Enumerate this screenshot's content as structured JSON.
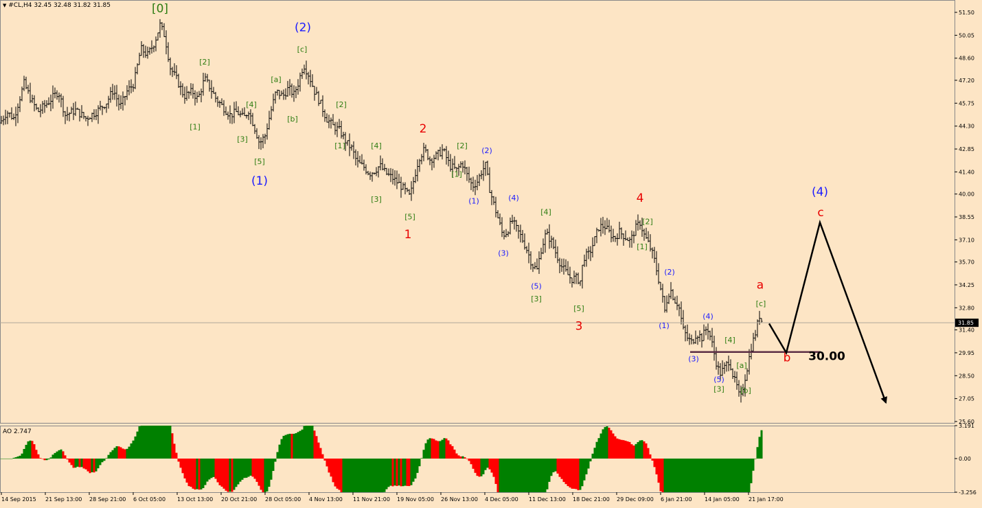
{
  "header": {
    "symbol": "#CL,H4",
    "ohlc": "32.45 32.48 31.82 31.85",
    "menu_icon": "triangle-down-icon"
  },
  "indicator": {
    "label": "AO 2.747",
    "ticks": [
      "3.191",
      "0.00",
      "-3.256"
    ]
  },
  "colors": {
    "background": "#fde5c5",
    "bars": "#000000",
    "wave_green": "#2e7d12",
    "wave_blue": "#1a1aff",
    "wave_red": "#e80000",
    "ao_up": "#008000",
    "ao_down": "#ff0000",
    "support_line": "#5b2d44",
    "current_price_bg": "#000000"
  },
  "chart_data": [
    {
      "type": "candlestick",
      "title": "#CL,H4",
      "price_axis_ticks": [
        "51.50",
        "50.05",
        "48.60",
        "47.20",
        "45.75",
        "44.30",
        "42.85",
        "41.40",
        "40.00",
        "38.55",
        "37.10",
        "35.70",
        "34.25",
        "32.80",
        "31.40",
        "29.95",
        "28.50",
        "27.05",
        "25.60"
      ],
      "ylim": [
        25.6,
        51.5
      ],
      "time_axis_labels": [
        "14 Sep 2015",
        "21 Sep 13:00",
        "28 Sep 21:00",
        "6 Oct 05:00",
        "13 Oct 13:00",
        "20 Oct 21:00",
        "28 Oct 05:00",
        "4 Nov 13:00",
        "11 Nov 21:00",
        "19 Nov 05:00",
        "26 Nov 13:00",
        "4 Dec 05:00",
        "11 Dec 13:00",
        "18 Dec 21:00",
        "29 Dec 09:00",
        "6 Jan 21:00",
        "14 Jan 05:00",
        "21 Jan 17:00"
      ],
      "current_price": "31.85",
      "path": [
        [
          0,
          44.5
        ],
        [
          10,
          45.2
        ],
        [
          20,
          44.8
        ],
        [
          35,
          47.0
        ],
        [
          45,
          46.0
        ],
        [
          55,
          45.2
        ],
        [
          70,
          45.8
        ],
        [
          85,
          46.5
        ],
        [
          95,
          45.0
        ],
        [
          110,
          45.3
        ],
        [
          125,
          44.8
        ],
        [
          140,
          45.2
        ],
        [
          155,
          45.8
        ],
        [
          165,
          46.6
        ],
        [
          175,
          45.5
        ],
        [
          185,
          46.5
        ],
        [
          195,
          47.0
        ],
        [
          205,
          49.2
        ],
        [
          215,
          48.8
        ],
        [
          225,
          49.6
        ],
        [
          233,
          50.7
        ],
        [
          240,
          50.0
        ],
        [
          248,
          48.0
        ],
        [
          258,
          47.2
        ],
        [
          268,
          46.2
        ],
        [
          280,
          46.5
        ],
        [
          288,
          46.0
        ],
        [
          298,
          47.3
        ],
        [
          305,
          46.8
        ],
        [
          315,
          46.0
        ],
        [
          325,
          45.5
        ],
        [
          335,
          45.0
        ],
        [
          345,
          45.2
        ],
        [
          355,
          44.8
        ],
        [
          362,
          45.3
        ],
        [
          370,
          44.3
        ],
        [
          378,
          43.2
        ],
        [
          386,
          43.7
        ],
        [
          393,
          45.0
        ],
        [
          402,
          46.5
        ],
        [
          412,
          46.2
        ],
        [
          420,
          46.7
        ],
        [
          428,
          46.3
        ],
        [
          434,
          47.0
        ],
        [
          442,
          48.2
        ],
        [
          450,
          47.5
        ],
        [
          458,
          46.5
        ],
        [
          466,
          45.8
        ],
        [
          475,
          44.8
        ],
        [
          485,
          44.3
        ],
        [
          495,
          44.0
        ],
        [
          505,
          43.2
        ],
        [
          512,
          42.9
        ],
        [
          520,
          42.0
        ],
        [
          530,
          41.7
        ],
        [
          538,
          41.3
        ],
        [
          546,
          41.5
        ],
        [
          553,
          41.8
        ],
        [
          562,
          41.3
        ],
        [
          572,
          41.0
        ],
        [
          582,
          40.6
        ],
        [
          590,
          40.2
        ],
        [
          597,
          39.8
        ],
        [
          603,
          41.0
        ],
        [
          610,
          42.3
        ],
        [
          618,
          42.8
        ],
        [
          626,
          42.2
        ],
        [
          635,
          42.4
        ],
        [
          645,
          42.8
        ],
        [
          655,
          41.8
        ],
        [
          665,
          41.5
        ],
        [
          673,
          42.0
        ],
        [
          680,
          41.2
        ],
        [
          688,
          40.5
        ],
        [
          695,
          40.8
        ],
        [
          702,
          41.5
        ],
        [
          707,
          41.8
        ],
        [
          712,
          40.5
        ],
        [
          718,
          39.5
        ],
        [
          725,
          38.5
        ],
        [
          732,
          37.4
        ],
        [
          738,
          37.6
        ],
        [
          746,
          38.3
        ],
        [
          752,
          37.8
        ],
        [
          760,
          37.2
        ],
        [
          768,
          36.4
        ],
        [
          775,
          35.5
        ],
        [
          782,
          35.2
        ],
        [
          788,
          36.5
        ],
        [
          795,
          37.5
        ],
        [
          802,
          37.1
        ],
        [
          810,
          36.2
        ],
        [
          818,
          35.4
        ],
        [
          825,
          35.0
        ],
        [
          832,
          34.6
        ],
        [
          838,
          34.7
        ],
        [
          845,
          34.5
        ],
        [
          850,
          36.0
        ],
        [
          858,
          36.2
        ],
        [
          865,
          37.0
        ],
        [
          872,
          37.9
        ],
        [
          880,
          38.0
        ],
        [
          888,
          37.5
        ],
        [
          895,
          37.2
        ],
        [
          902,
          37.6
        ],
        [
          910,
          37.3
        ],
        [
          918,
          37.0
        ],
        [
          925,
          37.8
        ],
        [
          932,
          38.2
        ],
        [
          938,
          37.4
        ],
        [
          945,
          36.8
        ],
        [
          952,
          36.0
        ],
        [
          958,
          34.8
        ],
        [
          964,
          33.6
        ],
        [
          968,
          32.6
        ],
        [
          972,
          33.5
        ],
        [
          976,
          34.0
        ],
        [
          982,
          33.3
        ],
        [
          988,
          33.0
        ],
        [
          995,
          31.4
        ],
        [
          1002,
          30.8
        ],
        [
          1008,
          30.6
        ],
        [
          1014,
          31.2
        ],
        [
          1022,
          30.9
        ],
        [
          1030,
          31.6
        ],
        [
          1036,
          30.7
        ],
        [
          1042,
          29.5
        ],
        [
          1048,
          28.6
        ],
        [
          1055,
          29.0
        ],
        [
          1062,
          29.5
        ],
        [
          1068,
          28.4
        ],
        [
          1073,
          27.8
        ],
        [
          1078,
          26.9
        ],
        [
          1083,
          28.0
        ],
        [
          1088,
          29.0
        ],
        [
          1094,
          30.3
        ],
        [
          1100,
          31.2
        ],
        [
          1106,
          32.3
        ],
        [
          1110,
          31.9
        ]
      ],
      "wave_labels": [
        {
          "text": "[0]",
          "color": "green",
          "x": 233,
          "y": 51.5,
          "size": "large"
        },
        {
          "text": "[2]",
          "color": "green",
          "x": 298,
          "y": 48.2
        },
        {
          "text": "[1]",
          "color": "green",
          "x": 284,
          "y": 44.1
        },
        {
          "text": "[3]",
          "color": "green",
          "x": 353,
          "y": 43.3
        },
        {
          "text": "[4]",
          "color": "green",
          "x": 366,
          "y": 45.5
        },
        {
          "text": "[5]",
          "color": "green",
          "x": 378,
          "y": 41.9
        },
        {
          "text": "(1)",
          "color": "blue",
          "x": 378,
          "y": 40.6,
          "size": "large"
        },
        {
          "text": "(2)",
          "color": "blue",
          "x": 441,
          "y": 50.3,
          "size": "large"
        },
        {
          "text": "[c]",
          "color": "green",
          "x": 440,
          "y": 49.0
        },
        {
          "text": "[a]",
          "color": "green",
          "x": 402,
          "y": 47.1
        },
        {
          "text": "[b]",
          "color": "green",
          "x": 426,
          "y": 44.6
        },
        {
          "text": "[2]",
          "color": "green",
          "x": 497,
          "y": 45.5
        },
        {
          "text": "[1]",
          "color": "green",
          "x": 495,
          "y": 42.9
        },
        {
          "text": "[4]",
          "color": "green",
          "x": 548,
          "y": 42.9
        },
        {
          "text": "[3]",
          "color": "green",
          "x": 548,
          "y": 39.5
        },
        {
          "text": "2",
          "color": "red",
          "x": 616,
          "y": 43.9,
          "size": "large"
        },
        {
          "text": "[5]",
          "color": "green",
          "x": 597,
          "y": 38.4
        },
        {
          "text": "1",
          "color": "red",
          "x": 594,
          "y": 37.2,
          "size": "large"
        },
        {
          "text": "[2]",
          "color": "green",
          "x": 673,
          "y": 42.9
        },
        {
          "text": "[1]",
          "color": "green",
          "x": 665,
          "y": 41.1
        },
        {
          "text": "(2)",
          "color": "blue",
          "x": 709,
          "y": 42.6
        },
        {
          "text": "(1)",
          "color": "blue",
          "x": 690,
          "y": 39.4
        },
        {
          "text": "(4)",
          "color": "blue",
          "x": 748,
          "y": 39.6
        },
        {
          "text": "[4]",
          "color": "green",
          "x": 795,
          "y": 38.7
        },
        {
          "text": "(3)",
          "color": "blue",
          "x": 733,
          "y": 36.1
        },
        {
          "text": "(5)",
          "color": "blue",
          "x": 781,
          "y": 34.0
        },
        {
          "text": "[3]",
          "color": "green",
          "x": 781,
          "y": 33.2
        },
        {
          "text": "[5]",
          "color": "green",
          "x": 843,
          "y": 32.6
        },
        {
          "text": "3",
          "color": "red",
          "x": 843,
          "y": 31.4,
          "size": "large"
        },
        {
          "text": "4",
          "color": "red",
          "x": 932,
          "y": 39.5,
          "size": "large"
        },
        {
          "text": "[2]",
          "color": "green",
          "x": 943,
          "y": 38.1
        },
        {
          "text": "[1]",
          "color": "green",
          "x": 935,
          "y": 36.5
        },
        {
          "text": "(2)",
          "color": "blue",
          "x": 975,
          "y": 34.9
        },
        {
          "text": "(1)",
          "color": "blue",
          "x": 967,
          "y": 31.5
        },
        {
          "text": "(4)",
          "color": "blue",
          "x": 1031,
          "y": 32.1
        },
        {
          "text": "[4]",
          "color": "green",
          "x": 1063,
          "y": 30.6
        },
        {
          "text": "(3)",
          "color": "blue",
          "x": 1010,
          "y": 29.4
        },
        {
          "text": "(5)",
          "color": "blue",
          "x": 1047,
          "y": 28.1
        },
        {
          "text": "[3]",
          "color": "green",
          "x": 1047,
          "y": 27.5
        },
        {
          "text": "[a]",
          "color": "green",
          "x": 1080,
          "y": 29.0
        },
        {
          "text": "[b]",
          "color": "green",
          "x": 1086,
          "y": 27.4
        },
        {
          "text": "[c]",
          "color": "green",
          "x": 1108,
          "y": 32.9
        },
        {
          "text": "a",
          "color": "red",
          "x": 1107,
          "y": 34.0,
          "size": "large"
        },
        {
          "text": "b",
          "color": "red",
          "x": 1146,
          "y": 29.4,
          "size": "large"
        },
        {
          "text": "c",
          "color": "red",
          "x": 1195,
          "y": 38.6,
          "size": "large"
        },
        {
          "text": "(4)",
          "color": "blue",
          "x": 1194,
          "y": 39.9,
          "size": "large"
        },
        {
          "text": "30.00",
          "color": "black",
          "x": 1204,
          "y": 29.5,
          "size": "large"
        }
      ],
      "support_line": {
        "value": 30.0,
        "x_from": 1005,
        "x_to": 1195
      },
      "forecast_path": [
        [
          1120,
          31.8
        ],
        [
          1145,
          29.95
        ],
        [
          1194,
          38.2
        ],
        [
          1290,
          26.8
        ]
      ]
    },
    {
      "type": "bar",
      "title": "AO 2.747",
      "ylim": [
        -3.256,
        3.191
      ],
      "ticks": [
        "3.191",
        "0.00",
        "-3.256"
      ],
      "last_value": 2.747
    }
  ]
}
